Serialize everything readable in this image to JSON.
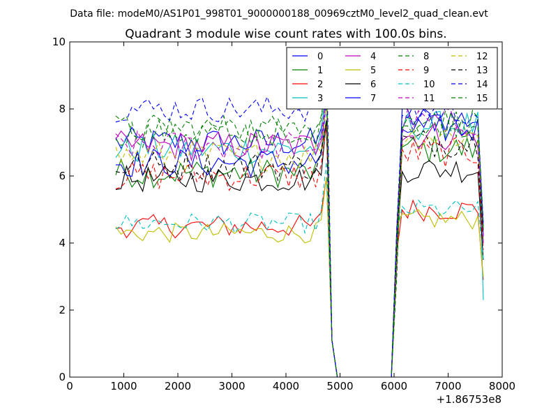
{
  "suptitle": "Data file: modeM0/AS1P01_998T01_9000000188_00969cztM0_level2_quad_clean.evt",
  "chart_data": {
    "type": "line",
    "title": "Quadrant 3 module wise count rates with 100.0s bins.",
    "xlabel": "",
    "ylabel": "",
    "x_offset_label": "+1.86753e8",
    "xlim": [
      0,
      8000
    ],
    "ylim": [
      0,
      10
    ],
    "xticks": [
      0,
      1000,
      2000,
      3000,
      4000,
      5000,
      6000,
      7000,
      8000
    ],
    "yticks": [
      0,
      2,
      4,
      6,
      8,
      10
    ],
    "grid": false,
    "legend_position": "top-right",
    "legend_columns": 4,
    "x": [
      850,
      950,
      1050,
      1150,
      1250,
      1350,
      1450,
      1550,
      1650,
      1750,
      1850,
      1950,
      2050,
      2150,
      2250,
      2350,
      2450,
      2550,
      2650,
      2750,
      2850,
      2950,
      3050,
      3150,
      3250,
      3350,
      3450,
      3550,
      3650,
      3750,
      3850,
      3950,
      4050,
      4150,
      4250,
      4350,
      4450,
      4550,
      4650,
      4750,
      4850,
      4950,
      5050,
      5150,
      5250,
      5350,
      5450,
      5550,
      5650,
      5750,
      5850,
      5950,
      6050,
      6150,
      6250,
      6350,
      6450,
      6550,
      6650,
      6750,
      6850,
      6950,
      7050,
      7150,
      7250,
      7350,
      7450,
      7550,
      7650
    ],
    "series": [
      {
        "name": "0",
        "color": "#0000ff",
        "style": "solid",
        "level": 7.0,
        "amp": 0.45,
        "gap_value": 0.0,
        "post_level": 7.7,
        "end_value": 4.5
      },
      {
        "name": "1",
        "color": "#008000",
        "style": "solid",
        "level": 6.1,
        "amp": 0.45,
        "gap_value": 0.0,
        "post_level": 6.8,
        "end_value": 4.0
      },
      {
        "name": "2",
        "color": "#ff0000",
        "style": "solid",
        "level": 4.5,
        "amp": 0.35,
        "gap_value": 0.0,
        "post_level": 5.0,
        "end_value": 2.9
      },
      {
        "name": "3",
        "color": "#00bfbf",
        "style": "solid",
        "level": 6.8,
        "amp": 0.45,
        "gap_value": 0.0,
        "post_level": 7.5,
        "end_value": 2.3
      },
      {
        "name": "4",
        "color": "#bf00bf",
        "style": "solid",
        "level": 6.9,
        "amp": 0.45,
        "gap_value": 0.0,
        "post_level": 7.2,
        "end_value": 4.4
      },
      {
        "name": "5",
        "color": "#bfbf00",
        "style": "solid",
        "level": 4.3,
        "amp": 0.3,
        "gap_value": 0.0,
        "post_level": 4.7,
        "end_value": 3.0
      },
      {
        "name": "6",
        "color": "#000000",
        "style": "solid",
        "level": 5.9,
        "amp": 0.4,
        "gap_value": 0.0,
        "post_level": 6.2,
        "end_value": 3.5
      },
      {
        "name": "7",
        "color": "#0000ff",
        "style": "solid",
        "level": 6.4,
        "amp": 0.45,
        "gap_value": 0.0,
        "post_level": 7.4,
        "end_value": 4.2
      },
      {
        "name": "8",
        "color": "#008000",
        "style": "dashed",
        "level": 7.3,
        "amp": 0.45,
        "gap_value": 0.0,
        "post_level": 7.6,
        "end_value": 4.5
      },
      {
        "name": "9",
        "color": "#ff0000",
        "style": "dashed",
        "level": 6.0,
        "amp": 0.45,
        "gap_value": 0.0,
        "post_level": 6.7,
        "end_value": 3.8
      },
      {
        "name": "10",
        "color": "#00bfbf",
        "style": "dashed",
        "level": 4.6,
        "amp": 0.3,
        "gap_value": 0.0,
        "post_level": 5.0,
        "end_value": 3.5
      },
      {
        "name": "11",
        "color": "#bf00bf",
        "style": "dashed",
        "level": 6.9,
        "amp": 0.45,
        "gap_value": 0.0,
        "post_level": 7.6,
        "end_value": 4.0
      },
      {
        "name": "12",
        "color": "#bfbf00",
        "style": "dashed",
        "level": 6.6,
        "amp": 0.45,
        "gap_value": 0.0,
        "post_level": 7.2,
        "end_value": 4.5
      },
      {
        "name": "13",
        "color": "#000000",
        "style": "dashed",
        "level": 6.3,
        "amp": 0.45,
        "gap_value": 0.0,
        "post_level": 7.0,
        "end_value": 4.3
      },
      {
        "name": "14",
        "color": "#0000ff",
        "style": "dashed",
        "level": 8.0,
        "amp": 0.4,
        "gap_value": 0.0,
        "post_level": 7.9,
        "end_value": 4.6
      },
      {
        "name": "15",
        "color": "#008000",
        "style": "dashed",
        "level": 7.4,
        "amp": 0.45,
        "gap_value": 0.0,
        "post_level": 7.6,
        "end_value": 4.4
      }
    ]
  }
}
